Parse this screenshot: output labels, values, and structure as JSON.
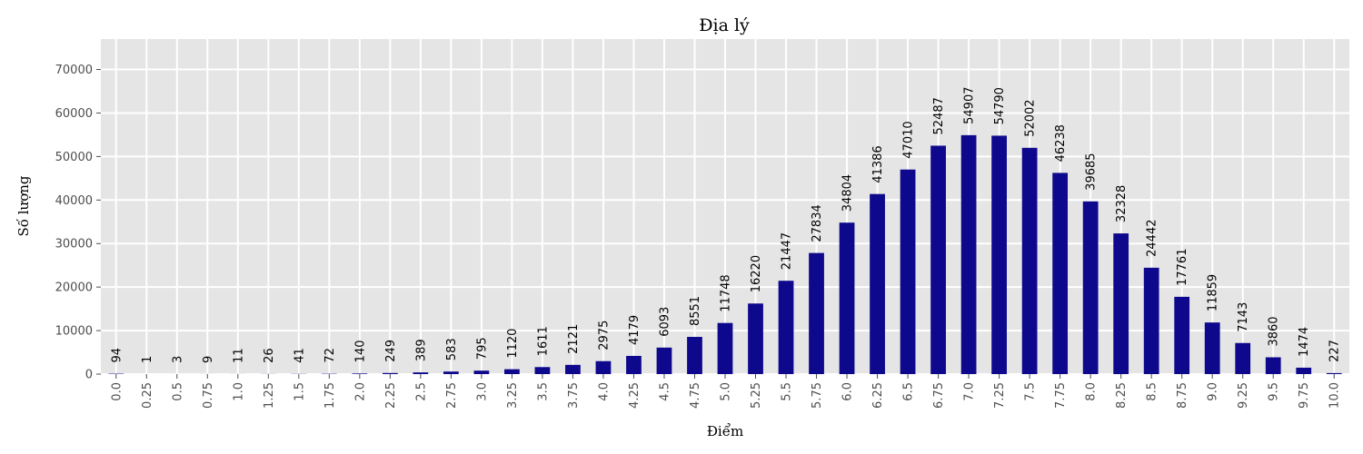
{
  "chart_data": {
    "type": "bar",
    "title": "Địa lý",
    "xlabel": "Điểm",
    "ylabel": "Số lượng",
    "ylim": [
      0,
      77000
    ],
    "yticks": [
      0,
      10000,
      20000,
      30000,
      40000,
      50000,
      60000,
      70000
    ],
    "grid": true,
    "colors": {
      "bar": "#0d088c",
      "background": "#e5e5e5",
      "grid": "#ffffff"
    },
    "categories": [
      "0.0",
      "0.25",
      "0.5",
      "0.75",
      "1.0",
      "1.25",
      "1.5",
      "1.75",
      "2.0",
      "2.25",
      "2.5",
      "2.75",
      "3.0",
      "3.25",
      "3.5",
      "3.75",
      "4.0",
      "4.25",
      "4.5",
      "4.75",
      "5.0",
      "5.25",
      "5.5",
      "5.75",
      "6.0",
      "6.25",
      "6.5",
      "6.75",
      "7.0",
      "7.25",
      "7.5",
      "7.75",
      "8.0",
      "8.25",
      "8.5",
      "8.75",
      "9.0",
      "9.25",
      "9.5",
      "9.75",
      "10.0"
    ],
    "values": [
      94,
      1,
      3,
      9,
      11,
      26,
      41,
      72,
      140,
      249,
      389,
      583,
      795,
      1120,
      1611,
      2121,
      2975,
      4179,
      6093,
      8551,
      11748,
      16220,
      21447,
      27834,
      34804,
      41386,
      47010,
      52487,
      54907,
      54790,
      52002,
      46238,
      39685,
      32328,
      24442,
      17761,
      11859,
      7143,
      3860,
      1474,
      227
    ]
  }
}
